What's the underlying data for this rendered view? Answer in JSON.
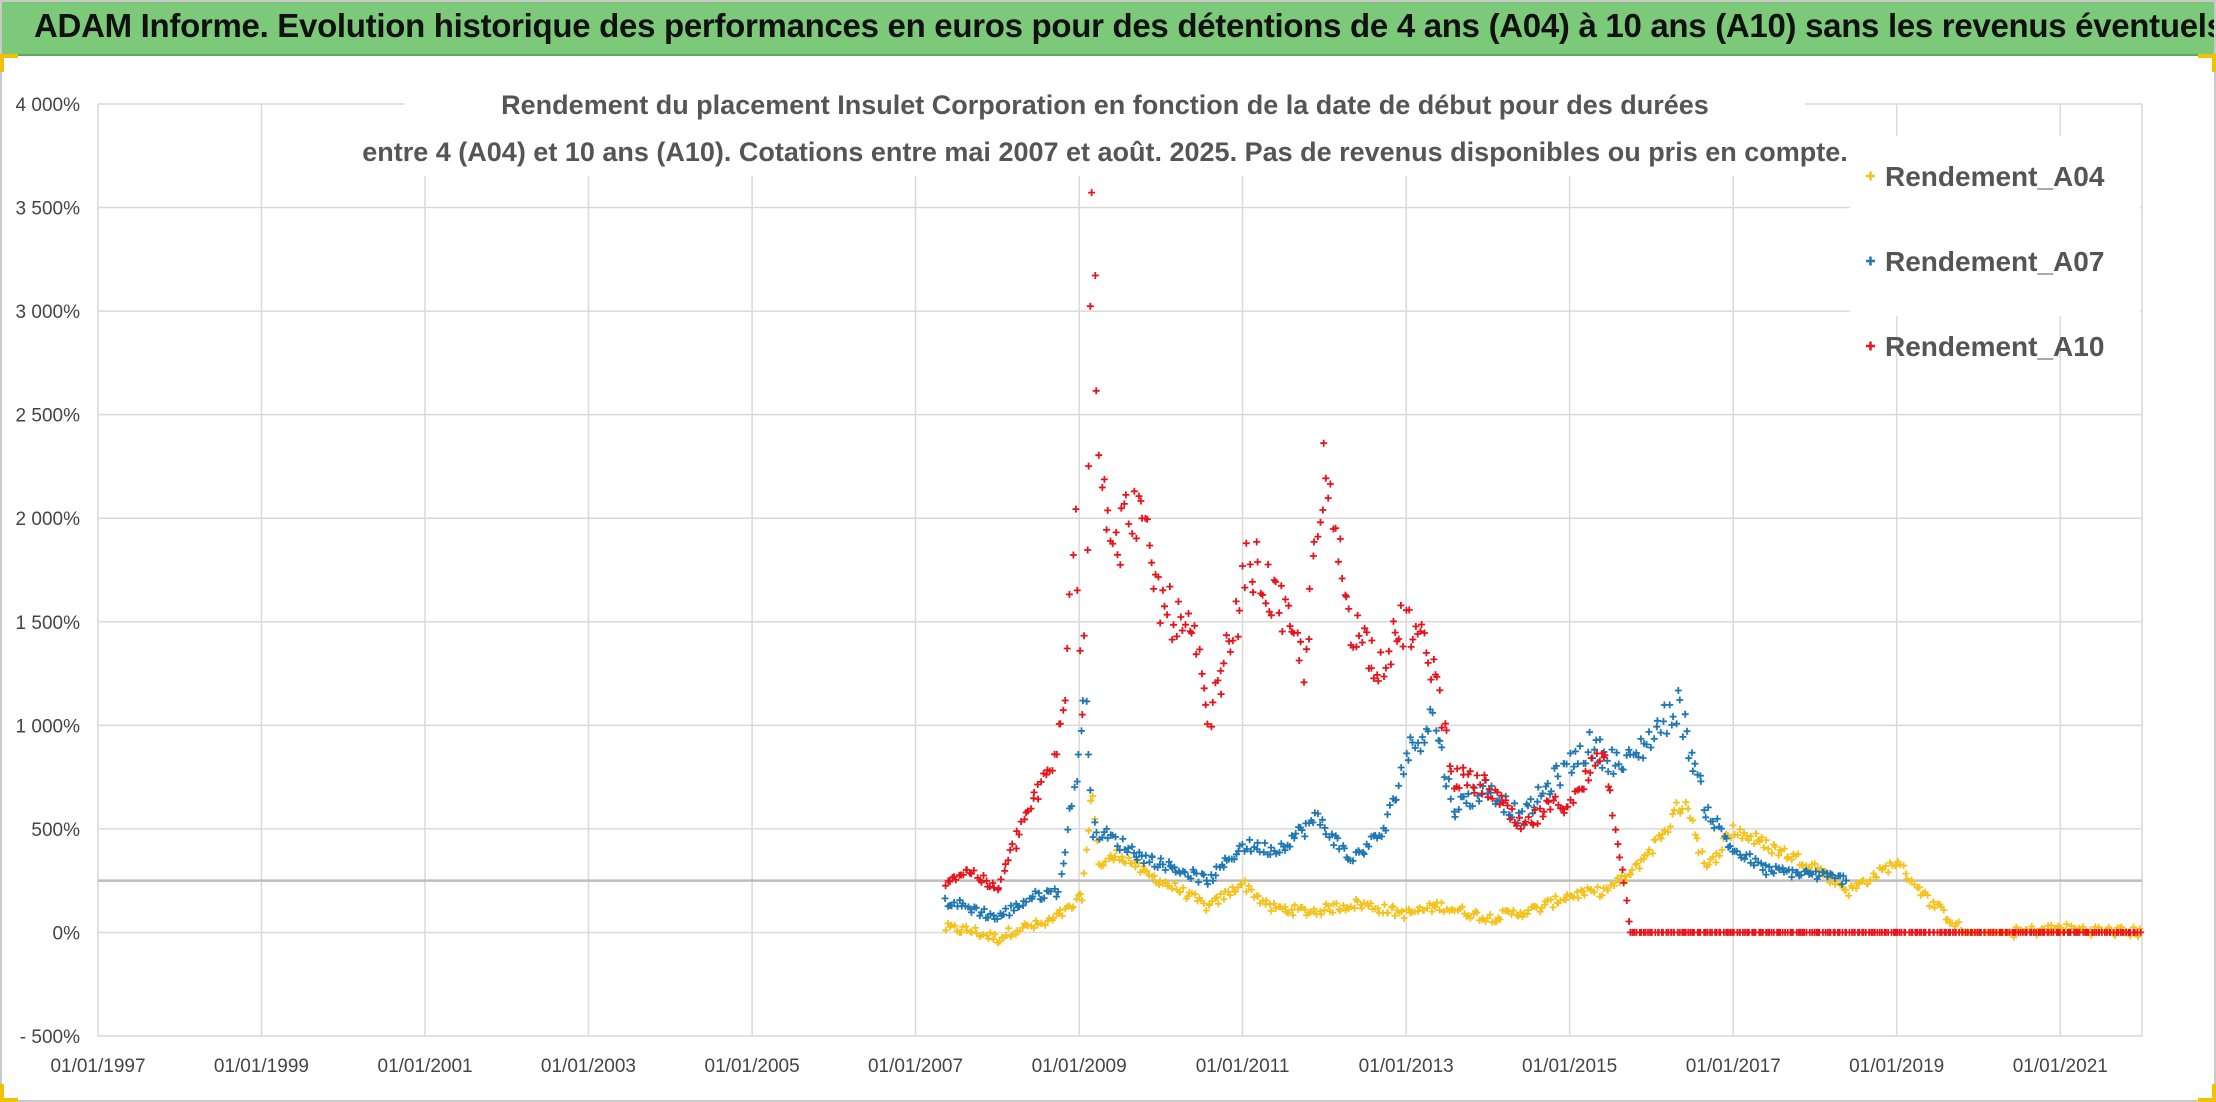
{
  "header": {
    "title": "ADAM Informe. Evolution historique des performances en euros pour des détentions de 4 ans (A04) à 10 ans (A10) sans les revenus éventuels"
  },
  "colors": {
    "header_bg": "#7dc97a",
    "grid": "#d9d9d9",
    "A04": "#f5c21b",
    "A07": "#1f77b4",
    "A10": "#e8141c"
  },
  "chart_data": {
    "type": "scatter",
    "title_lines": [
      "Rendement du placement Insulet Corporation en fonction de la date de début pour des durées",
      "entre 4 (A04) et 10 ans (A10). Cotations entre mai 2007 et août. 2025. Pas de revenus disponibles ou pris en compte."
    ],
    "xlabel": "",
    "ylabel": "",
    "x_range": [
      "1997-01-01",
      "2022-01-01"
    ],
    "ylim": [
      -500,
      4000
    ],
    "y_ticks": [
      -500,
      0,
      500,
      1000,
      1500,
      2000,
      2500,
      3000,
      3500,
      4000
    ],
    "y_tick_labels": [
      "- 500%",
      "0%",
      "500%",
      "1 000%",
      "1 500%",
      "2 000%",
      "2 500%",
      "3 000%",
      "3 500%",
      "4 000%"
    ],
    "x_tick_labels": [
      "01/01/1997",
      "01/01/1999",
      "01/01/2001",
      "01/01/2003",
      "01/01/2005",
      "01/01/2007",
      "01/01/2009",
      "01/01/2011",
      "01/01/2013",
      "01/01/2015",
      "01/01/2017",
      "01/01/2019",
      "01/01/2021"
    ],
    "grid": true,
    "marker": "+",
    "reference_line": 250,
    "legend_position": "top-right",
    "series": [
      {
        "name": "Rendement_A04",
        "color": "#f5c21b",
        "points": [
          [
            "2007-05-15",
            20
          ],
          [
            "2007-09-01",
            10
          ],
          [
            "2008-01-01",
            -30
          ],
          [
            "2008-04-01",
            20
          ],
          [
            "2008-08-01",
            40
          ],
          [
            "2008-12-01",
            120
          ],
          [
            "2009-01-15",
            180
          ],
          [
            "2009-03-01",
            700
          ],
          [
            "2009-04-01",
            320
          ],
          [
            "2009-07-01",
            380
          ],
          [
            "2009-11-01",
            280
          ],
          [
            "2010-04-01",
            200
          ],
          [
            "2010-08-01",
            120
          ],
          [
            "2011-01-01",
            240
          ],
          [
            "2011-05-01",
            120
          ],
          [
            "2011-11-01",
            100
          ],
          [
            "2012-06-01",
            140
          ],
          [
            "2013-01-01",
            90
          ],
          [
            "2013-06-01",
            130
          ],
          [
            "2014-01-01",
            70
          ],
          [
            "2014-08-01",
            110
          ],
          [
            "2015-01-01",
            180
          ],
          [
            "2015-06-01",
            200
          ],
          [
            "2015-10-01",
            280
          ],
          [
            "2016-02-01",
            450
          ],
          [
            "2016-06-01",
            650
          ],
          [
            "2016-09-01",
            300
          ],
          [
            "2017-01-01",
            500
          ],
          [
            "2017-06-01",
            420
          ],
          [
            "2018-01-01",
            320
          ],
          [
            "2018-06-01",
            200
          ],
          [
            "2019-01-01",
            340
          ],
          [
            "2019-06-01",
            150
          ],
          [
            "2019-11-01",
            0
          ],
          [
            "2020-06-01",
            0
          ],
          [
            "2021-01-01",
            20
          ],
          [
            "2021-06-01",
            10
          ],
          [
            "2022-01-01",
            0
          ]
        ]
      },
      {
        "name": "Rendement_A07",
        "color": "#1f77b4",
        "points": [
          [
            "2007-05-15",
            150
          ],
          [
            "2007-09-01",
            120
          ],
          [
            "2008-01-01",
            70
          ],
          [
            "2008-06-01",
            170
          ],
          [
            "2008-10-01",
            200
          ],
          [
            "2009-01-01",
            850
          ],
          [
            "2009-02-01",
            1150
          ],
          [
            "2009-03-01",
            500
          ],
          [
            "2009-06-01",
            450
          ],
          [
            "2009-10-01",
            370
          ],
          [
            "2010-04-01",
            300
          ],
          [
            "2010-08-01",
            250
          ],
          [
            "2011-01-01",
            420
          ],
          [
            "2011-06-01",
            400
          ],
          [
            "2011-12-01",
            550
          ],
          [
            "2012-05-01",
            350
          ],
          [
            "2012-10-01",
            500
          ],
          [
            "2013-01-01",
            850
          ],
          [
            "2013-05-01",
            1050
          ],
          [
            "2013-08-01",
            600
          ],
          [
            "2014-01-01",
            700
          ],
          [
            "2014-06-01",
            550
          ],
          [
            "2014-11-01",
            750
          ],
          [
            "2015-04-01",
            900
          ],
          [
            "2015-09-01",
            800
          ],
          [
            "2016-01-01",
            950
          ],
          [
            "2016-05-01",
            1100
          ],
          [
            "2016-09-01",
            600
          ],
          [
            "2017-01-01",
            400
          ],
          [
            "2017-06-01",
            300
          ],
          [
            "2018-01-01",
            280
          ],
          [
            "2018-06-01",
            250
          ]
        ]
      },
      {
        "name": "Rendement_A10",
        "color": "#e8141c",
        "points": [
          [
            "2007-05-15",
            250
          ],
          [
            "2007-09-01",
            300
          ],
          [
            "2008-01-01",
            200
          ],
          [
            "2008-05-01",
            550
          ],
          [
            "2008-09-01",
            800
          ],
          [
            "2008-11-01",
            1100
          ],
          [
            "2008-12-15",
            2100
          ],
          [
            "2009-01-15",
            1100
          ],
          [
            "2009-02-15",
            2400
          ],
          [
            "2009-03-01",
            3550
          ],
          [
            "2009-04-01",
            2400
          ],
          [
            "2009-06-01",
            1800
          ],
          [
            "2009-09-01",
            2100
          ],
          [
            "2010-01-01",
            1600
          ],
          [
            "2010-06-01",
            1400
          ],
          [
            "2010-08-01",
            1000
          ],
          [
            "2010-12-01",
            1500
          ],
          [
            "2011-02-01",
            1800
          ],
          [
            "2011-06-01",
            1600
          ],
          [
            "2011-10-01",
            1300
          ],
          [
            "2012-01-01",
            2200
          ],
          [
            "2012-05-01",
            1500
          ],
          [
            "2012-09-01",
            1300
          ],
          [
            "2013-01-01",
            1500
          ],
          [
            "2013-05-01",
            1300
          ],
          [
            "2013-08-01",
            750
          ],
          [
            "2014-01-01",
            700
          ],
          [
            "2014-06-01",
            500
          ],
          [
            "2014-10-01",
            600
          ],
          [
            "2015-02-01",
            650
          ],
          [
            "2015-06-01",
            900
          ],
          [
            "2015-10-01",
            0
          ],
          [
            "2022-01-01",
            0
          ]
        ]
      }
    ]
  }
}
